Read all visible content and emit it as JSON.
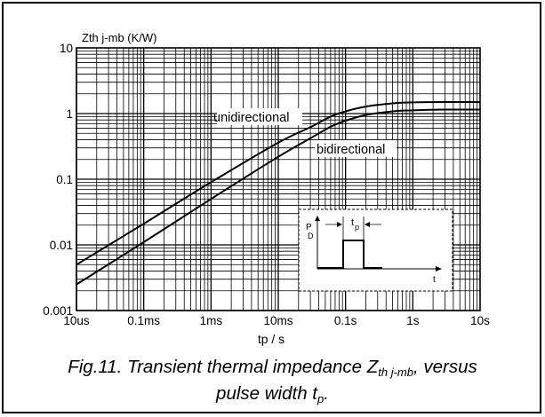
{
  "chart_data": {
    "type": "line",
    "title": "",
    "ylabel": "Zth j-mb  (K/W)",
    "xlabel": "tp / s",
    "x_scale": "log",
    "y_scale": "log",
    "xlim": [
      "10us",
      "10s"
    ],
    "ylim": [
      0.001,
      10
    ],
    "x_ticks": [
      {
        "label": "10us",
        "value_s": 1e-05
      },
      {
        "label": "0.1ms",
        "value_s": 0.0001
      },
      {
        "label": "1ms",
        "value_s": 0.001
      },
      {
        "label": "10ms",
        "value_s": 0.01
      },
      {
        "label": "0.1s",
        "value_s": 0.1
      },
      {
        "label": "1s",
        "value_s": 1
      },
      {
        "label": "10s",
        "value_s": 10
      }
    ],
    "y_ticks": [
      {
        "label": "10",
        "value": 10
      },
      {
        "label": "1",
        "value": 1
      },
      {
        "label": "0.1",
        "value": 0.1
      },
      {
        "label": "0.01",
        "value": 0.01
      },
      {
        "label": "0.001",
        "value": 0.001
      }
    ],
    "grid": true,
    "series": [
      {
        "name": "unidirectional",
        "x_s": [
          1e-05,
          0.0001,
          0.001,
          0.01,
          0.03,
          0.06,
          0.1,
          0.2,
          0.5,
          1,
          3,
          10
        ],
        "y": [
          0.005,
          0.021,
          0.09,
          0.36,
          0.62,
          0.9,
          1.08,
          1.28,
          1.43,
          1.48,
          1.5,
          1.5
        ]
      },
      {
        "name": "bidirectional",
        "x_s": [
          1e-05,
          0.0001,
          0.001,
          0.01,
          0.03,
          0.06,
          0.1,
          0.2,
          0.5,
          1,
          3,
          10
        ],
        "y": [
          0.0025,
          0.011,
          0.05,
          0.22,
          0.42,
          0.63,
          0.78,
          0.95,
          1.08,
          1.12,
          1.15,
          1.15
        ]
      }
    ],
    "inset": {
      "y_label_p": "P",
      "y_label_d": "D",
      "x_label": "t",
      "width_label_t": "t",
      "width_label_p": "p"
    }
  },
  "caption": {
    "line1_prefix": "Fig.11.  Transient thermal impedance Z",
    "line1_sub": "th j-mb",
    "line1_suffix": ", versus",
    "line2_prefix": "pulse width t",
    "line2_sub": "p",
    "line2_suffix": "."
  }
}
